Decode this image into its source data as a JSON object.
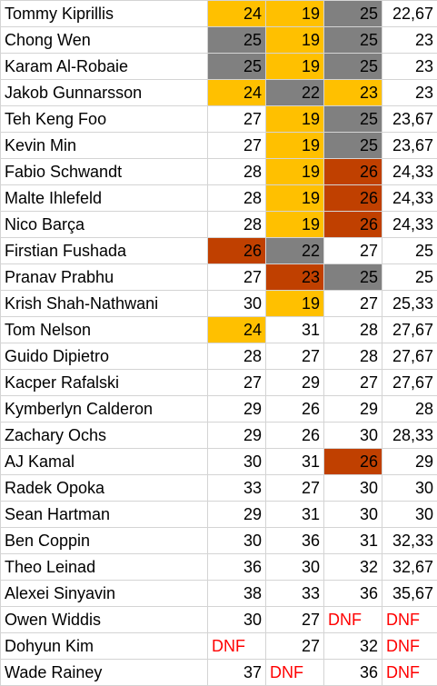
{
  "colors": {
    "gold": "#ffc000",
    "gray": "#808080",
    "rust": "#c04000",
    "dnf_text": "#ff0000"
  },
  "rows": [
    {
      "name": "Tommy Kiprillis",
      "r1": "24",
      "r2": "19",
      "r3": "25",
      "avg": "22,67",
      "h": [
        "y",
        "y",
        "g",
        ""
      ]
    },
    {
      "name": "Chong Wen",
      "r1": "25",
      "r2": "19",
      "r3": "25",
      "avg": "23",
      "h": [
        "g",
        "y",
        "g",
        ""
      ]
    },
    {
      "name": "Karam Al-Robaie",
      "r1": "25",
      "r2": "19",
      "r3": "25",
      "avg": "23",
      "h": [
        "g",
        "y",
        "g",
        ""
      ]
    },
    {
      "name": "Jakob Gunnarsson",
      "r1": "24",
      "r2": "22",
      "r3": "23",
      "avg": "23",
      "h": [
        "y",
        "g",
        "y",
        ""
      ]
    },
    {
      "name": "Teh Keng Foo",
      "r1": "27",
      "r2": "19",
      "r3": "25",
      "avg": "23,67",
      "h": [
        "",
        "y",
        "g",
        ""
      ]
    },
    {
      "name": "Kevin Min",
      "r1": "27",
      "r2": "19",
      "r3": "25",
      "avg": "23,67",
      "h": [
        "",
        "y",
        "g",
        ""
      ]
    },
    {
      "name": "Fabio Schwandt",
      "r1": "28",
      "r2": "19",
      "r3": "26",
      "avg": "24,33",
      "h": [
        "",
        "y",
        "r",
        ""
      ]
    },
    {
      "name": "Malte Ihlefeld",
      "r1": "28",
      "r2": "19",
      "r3": "26",
      "avg": "24,33",
      "h": [
        "",
        "y",
        "r",
        ""
      ]
    },
    {
      "name": "Nico Barça",
      "r1": "28",
      "r2": "19",
      "r3": "26",
      "avg": "24,33",
      "h": [
        "",
        "y",
        "r",
        ""
      ]
    },
    {
      "name": "Firstian Fushada",
      "r1": "26",
      "r2": "22",
      "r3": "27",
      "avg": "25",
      "h": [
        "r",
        "g",
        "",
        ""
      ]
    },
    {
      "name": "Pranav Prabhu",
      "r1": "27",
      "r2": "23",
      "r3": "25",
      "avg": "25",
      "h": [
        "",
        "r",
        "g",
        ""
      ]
    },
    {
      "name": "Krish Shah-Nathwani",
      "r1": "30",
      "r2": "19",
      "r3": "27",
      "avg": "25,33",
      "h": [
        "",
        "y",
        "",
        ""
      ]
    },
    {
      "name": "Tom Nelson",
      "r1": "24",
      "r2": "31",
      "r3": "28",
      "avg": "27,67",
      "h": [
        "y",
        "",
        "",
        ""
      ]
    },
    {
      "name": "Guido Dipietro",
      "r1": "28",
      "r2": "27",
      "r3": "28",
      "avg": "27,67",
      "h": [
        "",
        "",
        "",
        ""
      ]
    },
    {
      "name": "Kacper Rafalski",
      "r1": "27",
      "r2": "29",
      "r3": "27",
      "avg": "27,67",
      "h": [
        "",
        "",
        "",
        ""
      ]
    },
    {
      "name": "Kymberlyn Calderon",
      "r1": "29",
      "r2": "26",
      "r3": "29",
      "avg": "28",
      "h": [
        "",
        "",
        "",
        ""
      ]
    },
    {
      "name": "Zachary Ochs",
      "r1": "29",
      "r2": "26",
      "r3": "30",
      "avg": "28,33",
      "h": [
        "",
        "",
        "",
        ""
      ]
    },
    {
      "name": "AJ Kamal",
      "r1": "30",
      "r2": "31",
      "r3": "26",
      "avg": "29",
      "h": [
        "",
        "",
        "r",
        ""
      ]
    },
    {
      "name": "Radek Opoka",
      "r1": "33",
      "r2": "27",
      "r3": "30",
      "avg": "30",
      "h": [
        "",
        "",
        "",
        ""
      ]
    },
    {
      "name": "Sean Hartman",
      "r1": "29",
      "r2": "31",
      "r3": "30",
      "avg": "30",
      "h": [
        "",
        "",
        "",
        ""
      ]
    },
    {
      "name": "Ben Coppin",
      "r1": "30",
      "r2": "36",
      "r3": "31",
      "avg": "32,33",
      "h": [
        "",
        "",
        "",
        ""
      ]
    },
    {
      "name": "Theo Leinad",
      "r1": "36",
      "r2": "30",
      "r3": "32",
      "avg": "32,67",
      "h": [
        "",
        "",
        "",
        ""
      ]
    },
    {
      "name": "Alexei Sinyavin",
      "r1": "38",
      "r2": "33",
      "r3": "36",
      "avg": "35,67",
      "h": [
        "",
        "",
        "",
        ""
      ]
    },
    {
      "name": "Owen Widdis",
      "r1": "30",
      "r2": "27",
      "r3": "DNF",
      "avg": "DNF",
      "h": [
        "",
        "",
        "",
        ""
      ]
    },
    {
      "name": "Dohyun Kim",
      "r1": "DNF",
      "r2": "27",
      "r3": "32",
      "avg": "DNF",
      "h": [
        "",
        "",
        "",
        ""
      ]
    },
    {
      "name": "Wade Rainey",
      "r1": "37",
      "r2": "DNF",
      "r3": "36",
      "avg": "DNF",
      "h": [
        "",
        "",
        "",
        ""
      ]
    }
  ]
}
